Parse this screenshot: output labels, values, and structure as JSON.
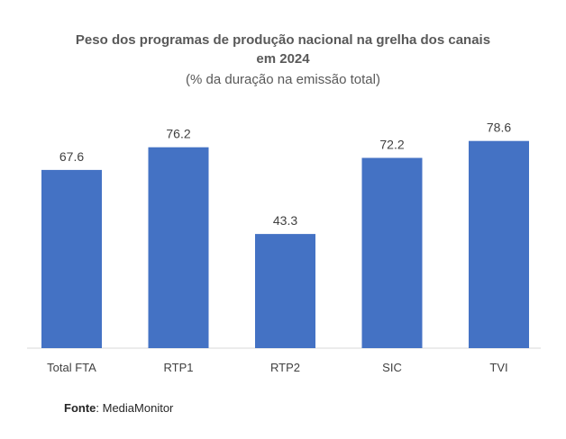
{
  "chart_data": {
    "type": "bar",
    "title_line1": "Peso dos programas de produção nacional na grelha dos canais",
    "title_line2": "em 2024",
    "subtitle": "(% da duração na emissão total)",
    "categories": [
      "Total FTA",
      "RTP1",
      "RTP2",
      "SIC",
      "TVI"
    ],
    "values": [
      67.6,
      76.2,
      43.3,
      72.2,
      78.6
    ],
    "xlabel": "",
    "ylabel": "",
    "ylim": [
      0,
      100
    ],
    "grid": false,
    "legend": "none",
    "bar_color": "#4472C4"
  },
  "source": {
    "label": "Fonte",
    "text": "MediaMonitor"
  }
}
